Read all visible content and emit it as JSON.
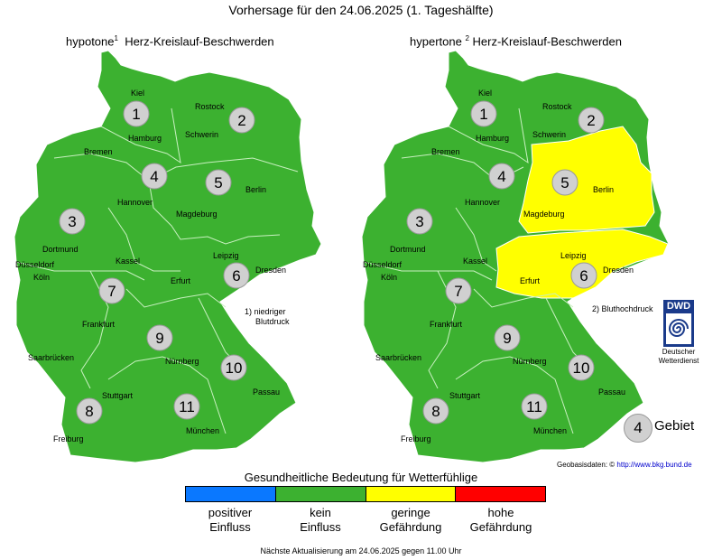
{
  "title": "Vorhersage für den 24.06.2025 (1. Tageshälfte)",
  "maps": [
    {
      "type_label": "hypotone",
      "sup": "1",
      "label": "Herz-Kreislauf-Beschwerden"
    },
    {
      "type_label": "hypertone",
      "sup": "2",
      "label": "Herz-Kreislauf-Beschwerden"
    }
  ],
  "regions": [
    "1",
    "2",
    "3",
    "4",
    "5",
    "6",
    "7",
    "8",
    "9",
    "10",
    "11"
  ],
  "region_status": {
    "hypotone": {
      "1": "kein Einfluss",
      "2": "kein Einfluss",
      "3": "kein Einfluss",
      "4": "kein Einfluss",
      "5": "kein Einfluss",
      "6": "kein Einfluss",
      "7": "kein Einfluss",
      "8": "kein Einfluss",
      "9": "kein Einfluss",
      "10": "kein Einfluss",
      "11": "kein Einfluss"
    },
    "hypertone": {
      "1": "kein Einfluss",
      "2": "kein Einfluss",
      "3": "kein Einfluss",
      "4": "kein Einfluss",
      "5": "geringe Gefährdung",
      "6": "geringe Gefährdung",
      "7": "kein Einfluss",
      "8": "kein Einfluss",
      "9": "kein Einfluss",
      "10": "kein Einfluss",
      "11": "kein Einfluss"
    }
  },
  "cities": [
    "Kiel",
    "Rostock",
    "Hamburg",
    "Schwerin",
    "Bremen",
    "Hannover",
    "Berlin",
    "Magdeburg",
    "Dortmund",
    "Düsseldorf",
    "Kassel",
    "Leipzig",
    "Dresden",
    "Köln",
    "Erfurt",
    "Frankfurt",
    "Saarbrücken",
    "Nürnberg",
    "Passau",
    "Stuttgart",
    "Freiburg",
    "München"
  ],
  "notes": {
    "note1_line1": "1) niedriger",
    "note1_line2": "Blutdruck",
    "note2": "2) Bluthochdruck"
  },
  "dwd": {
    "logo": "DWD",
    "line1": "Deutscher",
    "line2": "Wetterdienst"
  },
  "area_legend": {
    "number": "4",
    "label": "Gebiet"
  },
  "geobasis": {
    "prefix": "Geobasisdaten: ©",
    "link": "http://www.bkg.bund.de"
  },
  "legend": {
    "title": "Gesundheitliche Bedeutung für Wetterfühlige",
    "items": [
      {
        "line1": "positiver",
        "line2": "Einfluss",
        "color": "#0a78ff"
      },
      {
        "line1": "kein",
        "line2": "Einfluss",
        "color": "#3cb130"
      },
      {
        "line1": "geringe",
        "line2": "Gefährdung",
        "color": "#ffff00"
      },
      {
        "line1": "hohe",
        "line2": "Gefährdung",
        "color": "#ff0000"
      }
    ]
  },
  "footer": "Nächste Aktualisierung am 24.06.2025 gegen 11.00 Uhr"
}
